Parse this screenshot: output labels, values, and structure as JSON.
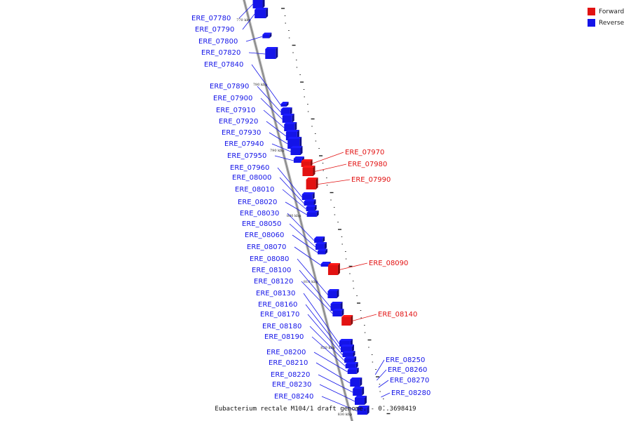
{
  "legend": [
    {
      "label": "Forward",
      "color": "#e21212"
    },
    {
      "label": "Reverse",
      "color": "#1414e8"
    }
  ],
  "colors": {
    "forward": "#e21212",
    "reverse": "#1414e8",
    "backbone": "#8a8a8a"
  },
  "caption": "Eubacterium rectale M104/1 draft genome. - 0..3698419",
  "scale_labels": [
    "770 kbp",
    "780 kbp",
    "790 kbp",
    "800 kbp",
    "810 kbp",
    "820 kbp",
    "830 kbp"
  ],
  "genes_reverse": [
    "ERE_07780",
    "ERE_07790",
    "ERE_07800",
    "ERE_07820",
    "ERE_07840",
    "ERE_07890",
    "ERE_07900",
    "ERE_07910",
    "ERE_07920",
    "ERE_07930",
    "ERE_07940",
    "ERE_07950",
    "ERE_07960",
    "ERE_08000",
    "ERE_08010",
    "ERE_08020",
    "ERE_08030",
    "ERE_08050",
    "ERE_08060",
    "ERE_08070",
    "ERE_08080",
    "ERE_08100",
    "ERE_08120",
    "ERE_08130",
    "ERE_08160",
    "ERE_08170",
    "ERE_08180",
    "ERE_08190",
    "ERE_08200",
    "ERE_08210",
    "ERE_08220",
    "ERE_08230",
    "ERE_08240"
  ],
  "genes_forward": [
    "ERE_07970",
    "ERE_07980",
    "ERE_07990",
    "ERE_08090",
    "ERE_08140"
  ],
  "genes_right_reverse": [
    "ERE_08250",
    "ERE_08260",
    "ERE_08270",
    "ERE_08280"
  ]
}
